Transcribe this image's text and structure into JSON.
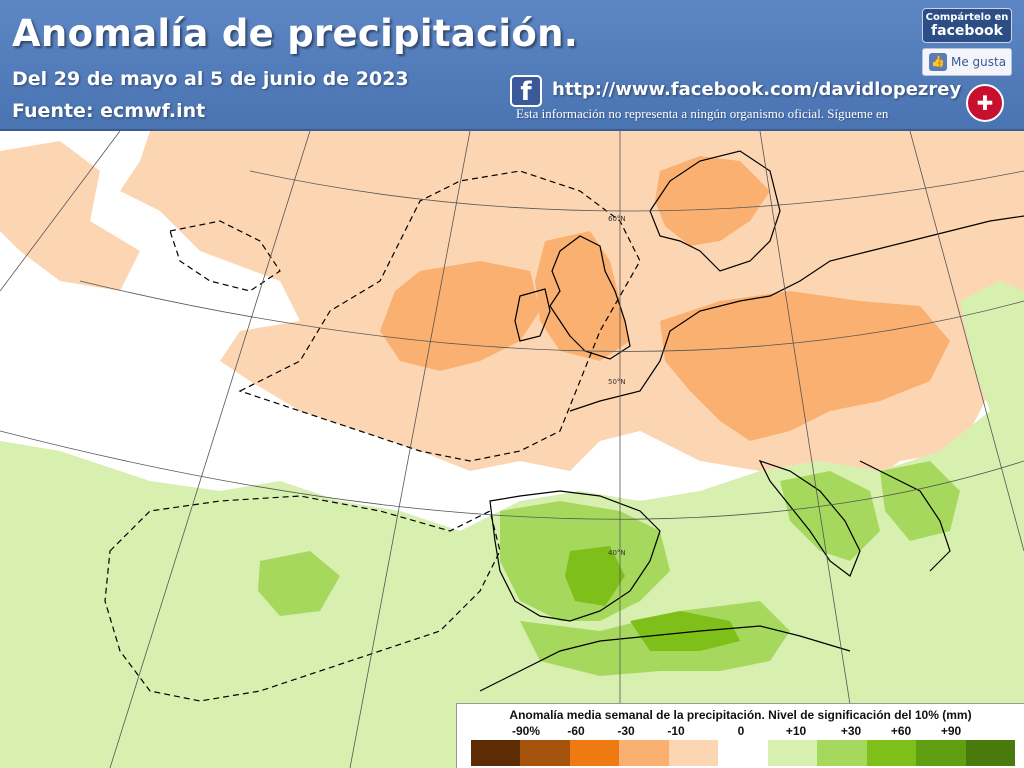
{
  "header": {
    "title": "Anomalía de precipitación.",
    "date_range": "Del 29 de mayo al 5 de junio de 2023",
    "source": "Fuente: ecmwf.int",
    "facebook_url": "http://www.facebook.com/davidlopezrey",
    "disclaimer": "Esta información no representa a ningún organismo oficial. Sígueme en",
    "share_top": "Compártelo en",
    "share_bottom": "facebook",
    "like_label": "Me gusta",
    "fb_icon": "f"
  },
  "map": {
    "lat_labels": [
      "60°N",
      "50°N",
      "40°N"
    ]
  },
  "legend": {
    "title": "Anomalía media semanal de la precipitación. Nivel de significación del 10% (mm)",
    "labels": [
      "-90%",
      "-60",
      "-30",
      "-10",
      "0",
      "+10",
      "+30",
      "+60",
      "+90"
    ],
    "colors": [
      "#5e2c04",
      "#a5520c",
      "#f07a12",
      "#f9b071",
      "#fcd6b2",
      "#ffffff",
      "#d7f0b0",
      "#a6d85e",
      "#7fbf19",
      "#609e12",
      "#4a7a0c"
    ]
  },
  "colors": {
    "header_bg": "#4a73b2",
    "dry_light": "#fcd6b2",
    "dry_mid": "#f9b071",
    "wet_light": "#d7f0b0",
    "wet_mid": "#a6d85e",
    "wet_strong": "#7fbf19"
  },
  "icons": [
    "facebook-icon",
    "thumbs-up-icon",
    "logo-icon"
  ]
}
